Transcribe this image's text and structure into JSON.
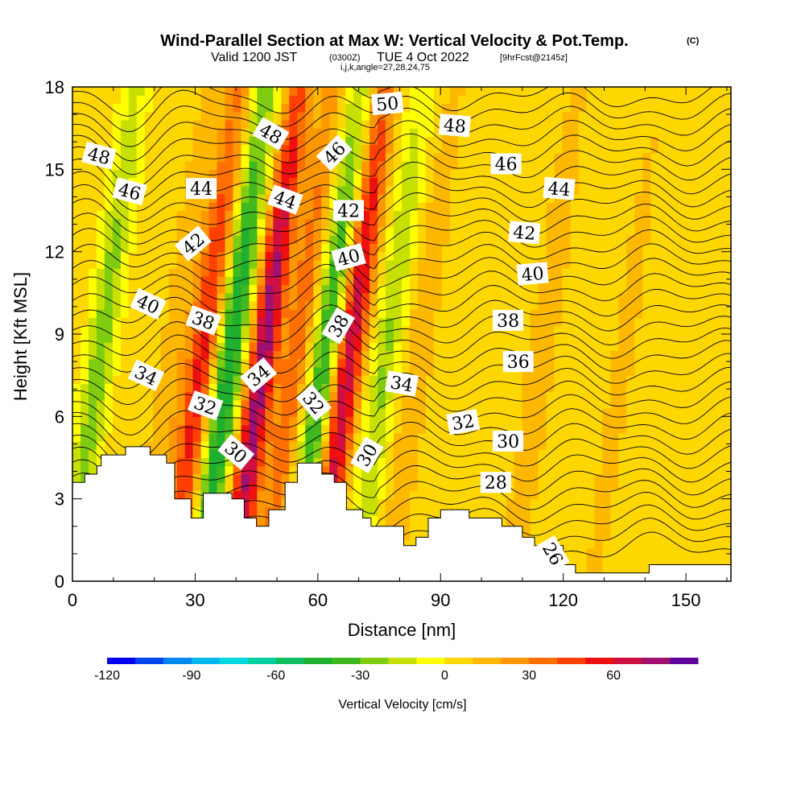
{
  "header": {
    "title_main": "Wind-Parallel Section at Max W: Vertical Velocity & Pot.Temp.",
    "title_copyright": "(C)",
    "valid_text": "Valid 1200 JST",
    "valid_utc": "(0300Z)",
    "valid_date": "TUE 4 Oct 2022",
    "forecast_info": "[9hrFcst@2145z]",
    "section_params": "i,j,k,angle=27,28,24,75"
  },
  "chart_data": {
    "type": "heatmap",
    "title": "Wind-Parallel Section at Max W: Vertical Velocity & Pot.Temp.",
    "xlabel": "Distance [nm]",
    "ylabel": "Height [Kft MSL]",
    "xlim": [
      0,
      161
    ],
    "ylim": [
      0,
      18
    ],
    "x_ticks": [
      0,
      30,
      60,
      90,
      120,
      150
    ],
    "y_ticks": [
      0,
      3,
      6,
      9,
      12,
      15,
      18
    ],
    "colorbar": {
      "label": "Vertical Velocity [cm/s]",
      "tick_values": [
        -120,
        -90,
        -60,
        -30,
        0,
        30,
        60
      ],
      "colors": [
        "#0000ee",
        "#0044ee",
        "#0088ee",
        "#00b8ee",
        "#00d8e0",
        "#00d0a0",
        "#10c060",
        "#20b030",
        "#40b820",
        "#80cc10",
        "#c8e000",
        "#ffff00",
        "#ffd700",
        "#ffb800",
        "#ff9800",
        "#ff7000",
        "#ff4000",
        "#ee1010",
        "#d01040",
        "#a01070",
        "#60009a"
      ]
    },
    "velocity_bands": [
      {
        "x": 2,
        "peak": -30
      },
      {
        "x": 20,
        "peak": 15
      },
      {
        "x": 27,
        "peak": 50
      },
      {
        "x": 34,
        "peak": -55
      },
      {
        "x": 42,
        "peak": 75
      },
      {
        "x": 50,
        "peak": 35
      },
      {
        "x": 57,
        "peak": -45
      },
      {
        "x": 63,
        "peak": 65
      },
      {
        "x": 72,
        "peak": -25
      },
      {
        "x": 80,
        "peak": 15
      },
      {
        "x": 110,
        "peak": 15
      },
      {
        "x": 130,
        "peak": 10
      }
    ],
    "contour_labels": [
      {
        "text": "50",
        "x": 77,
        "y": 17.4,
        "rot": -5
      },
      {
        "text": "48",
        "x": 6.5,
        "y": 15.5,
        "rot": 15
      },
      {
        "text": "48",
        "x": 48.5,
        "y": 16.3,
        "rot": 30
      },
      {
        "text": "48",
        "x": 93.5,
        "y": 16.6,
        "rot": 5
      },
      {
        "text": "46",
        "x": 14,
        "y": 14.2,
        "rot": 15
      },
      {
        "text": "46",
        "x": 64,
        "y": 15.6,
        "rot": -45
      },
      {
        "text": "46",
        "x": 106,
        "y": 15.2,
        "rot": 0
      },
      {
        "text": "44",
        "x": 31.5,
        "y": 14.3,
        "rot": 0
      },
      {
        "text": "44",
        "x": 52,
        "y": 13.9,
        "rot": 20
      },
      {
        "text": "44",
        "x": 119,
        "y": 14.3,
        "rot": 5
      },
      {
        "text": "42",
        "x": 29.5,
        "y": 12.3,
        "rot": -40
      },
      {
        "text": "42",
        "x": 67.5,
        "y": 13.5,
        "rot": 0
      },
      {
        "text": "42",
        "x": 110.5,
        "y": 12.7,
        "rot": 5
      },
      {
        "text": "40",
        "x": 18.5,
        "y": 10.1,
        "rot": 25
      },
      {
        "text": "40",
        "x": 67.5,
        "y": 11.8,
        "rot": -15
      },
      {
        "text": "40",
        "x": 112.5,
        "y": 11.2,
        "rot": -5
      },
      {
        "text": "38",
        "x": 32,
        "y": 9.5,
        "rot": 20
      },
      {
        "text": "38",
        "x": 65,
        "y": 9.3,
        "rot": -60
      },
      {
        "text": "38",
        "x": 106.5,
        "y": 9.5,
        "rot": 0
      },
      {
        "text": "36",
        "x": 109,
        "y": 8.0,
        "rot": 0
      },
      {
        "text": "34",
        "x": 18,
        "y": 7.5,
        "rot": 25
      },
      {
        "text": "34",
        "x": 45.5,
        "y": 7.5,
        "rot": -40
      },
      {
        "text": "34",
        "x": 80.5,
        "y": 7.2,
        "rot": 10
      },
      {
        "text": "32",
        "x": 32.5,
        "y": 6.4,
        "rot": 20
      },
      {
        "text": "32",
        "x": 59,
        "y": 6.5,
        "rot": 50
      },
      {
        "text": "32",
        "x": 95.5,
        "y": 5.8,
        "rot": -10
      },
      {
        "text": "30",
        "x": 40,
        "y": 4.7,
        "rot": 40
      },
      {
        "text": "30",
        "x": 72,
        "y": 4.6,
        "rot": -60
      },
      {
        "text": "30",
        "x": 106.5,
        "y": 5.1,
        "rot": 0
      },
      {
        "text": "28",
        "x": 103.5,
        "y": 3.6,
        "rot": 0
      },
      {
        "text": "26",
        "x": 117.5,
        "y": 1.0,
        "rot": 60
      }
    ],
    "terrain": [
      [
        0,
        3.6
      ],
      [
        3,
        3.6
      ],
      [
        3,
        3.9
      ],
      [
        6,
        3.9
      ],
      [
        6,
        4.2
      ],
      [
        7,
        4.2
      ],
      [
        7,
        4.6
      ],
      [
        13,
        4.6
      ],
      [
        13,
        4.9
      ],
      [
        19,
        4.9
      ],
      [
        19,
        4.6
      ],
      [
        23,
        4.6
      ],
      [
        23,
        4.3
      ],
      [
        25,
        4.3
      ],
      [
        25,
        3.0
      ],
      [
        29,
        3.0
      ],
      [
        29,
        2.3
      ],
      [
        32,
        2.3
      ],
      [
        32,
        3.2
      ],
      [
        39,
        3.2
      ],
      [
        39,
        3.0
      ],
      [
        42,
        3.0
      ],
      [
        42,
        2.3
      ],
      [
        45,
        2.3
      ],
      [
        45,
        2.0
      ],
      [
        48,
        2.0
      ],
      [
        48,
        2.6
      ],
      [
        52,
        2.6
      ],
      [
        52,
        3.6
      ],
      [
        55,
        3.6
      ],
      [
        55,
        4.3
      ],
      [
        61,
        4.3
      ],
      [
        61,
        3.9
      ],
      [
        64,
        3.9
      ],
      [
        64,
        3.6
      ],
      [
        67,
        3.6
      ],
      [
        67,
        2.6
      ],
      [
        71,
        2.6
      ],
      [
        71,
        2.3
      ],
      [
        73,
        2.3
      ],
      [
        73,
        2.0
      ],
      [
        81,
        2.0
      ],
      [
        81,
        1.3
      ],
      [
        84,
        1.3
      ],
      [
        84,
        1.6
      ],
      [
        87,
        1.6
      ],
      [
        87,
        2.3
      ],
      [
        90,
        2.3
      ],
      [
        90,
        2.6
      ],
      [
        97,
        2.6
      ],
      [
        97,
        2.3
      ],
      [
        105,
        2.3
      ],
      [
        105,
        2.0
      ],
      [
        110,
        2.0
      ],
      [
        110,
        1.6
      ],
      [
        113,
        1.6
      ],
      [
        113,
        1.3
      ],
      [
        120,
        1.3
      ],
      [
        120,
        0.6
      ],
      [
        123,
        0.6
      ],
      [
        123,
        0.3
      ],
      [
        141,
        0.3
      ],
      [
        141,
        0.6
      ],
      [
        161,
        0.6
      ]
    ]
  }
}
